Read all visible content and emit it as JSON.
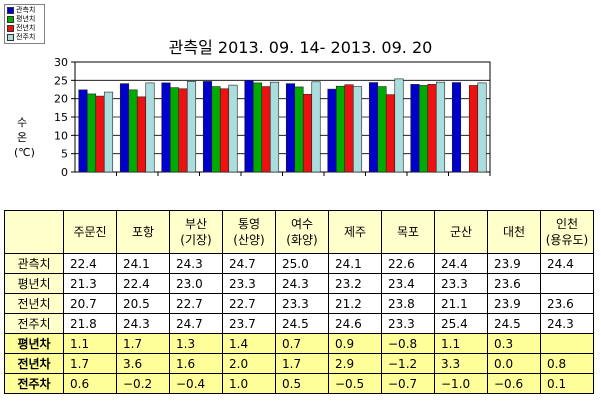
{
  "legend": [
    {
      "label": "관측치",
      "color": "#0000cc"
    },
    {
      "label": "평년치",
      "color": "#00aa00"
    },
    {
      "label": "전년치",
      "color": "#ee1111"
    },
    {
      "label": "전주치",
      "color": "#aadddd"
    }
  ],
  "chart_data": {
    "type": "bar",
    "title": "관측일 2013. 09. 14-  2013. 09. 20",
    "ylabel": "수온(℃)",
    "ylabel_lines": [
      "수",
      "온",
      "(℃)"
    ],
    "ylim": [
      0,
      30
    ],
    "yticks": [
      "0",
      "5",
      "10",
      "15",
      "20",
      "25",
      "30"
    ],
    "categories": [
      "주문진",
      "포항",
      "부산 (기장)",
      "통영 (산양)",
      "여수 (화양)",
      "제주",
      "목포",
      "군산",
      "대천",
      "인천 (용유도)"
    ],
    "series": [
      {
        "name": "관측치",
        "color": "#0000cc",
        "values": [
          22.4,
          24.1,
          24.3,
          24.7,
          25.0,
          24.1,
          22.6,
          24.4,
          23.9,
          24.4
        ]
      },
      {
        "name": "평년치",
        "color": "#00aa00",
        "values": [
          21.3,
          22.4,
          23.0,
          23.3,
          24.3,
          23.2,
          23.4,
          23.3,
          23.6,
          null
        ]
      },
      {
        "name": "전년치",
        "color": "#ee1111",
        "values": [
          20.7,
          20.5,
          22.7,
          22.7,
          23.3,
          21.2,
          23.8,
          21.1,
          23.9,
          23.6
        ]
      },
      {
        "name": "전주치",
        "color": "#aadddd",
        "values": [
          21.8,
          24.3,
          24.7,
          23.7,
          24.5,
          24.6,
          23.3,
          25.4,
          24.5,
          24.3
        ]
      }
    ],
    "grid": true
  },
  "table": {
    "headers": [
      [
        "주문진"
      ],
      [
        "포항"
      ],
      [
        "부산",
        "(기장)"
      ],
      [
        "통영",
        "(산양)"
      ],
      [
        "여수",
        "(화양)"
      ],
      [
        "제주"
      ],
      [
        "목포"
      ],
      [
        "군산"
      ],
      [
        "대천"
      ],
      [
        "인천",
        "(용유도)"
      ]
    ],
    "rows": [
      {
        "label": "관측치",
        "values": [
          "22.4",
          "24.1",
          "24.3",
          "24.7",
          "25.0",
          "24.1",
          "22.6",
          "24.4",
          "23.9",
          "24.4"
        ]
      },
      {
        "label": "평년치",
        "values": [
          "21.3",
          "22.4",
          "23.0",
          "23.3",
          "24.3",
          "23.2",
          "23.4",
          "23.3",
          "23.6",
          ""
        ]
      },
      {
        "label": "전년치",
        "values": [
          "20.7",
          "20.5",
          "22.7",
          "22.7",
          "23.3",
          "21.2",
          "23.8",
          "21.1",
          "23.9",
          "23.6"
        ]
      },
      {
        "label": "전주치",
        "values": [
          "21.8",
          "24.3",
          "24.7",
          "23.7",
          "24.5",
          "24.6",
          "23.3",
          "25.4",
          "24.5",
          "24.3"
        ]
      },
      {
        "label": "평년차",
        "diff": true,
        "values": [
          "1.1",
          "1.7",
          "1.3",
          "1.4",
          "0.7",
          "0.9",
          "−0.8",
          "1.1",
          "0.3",
          ""
        ]
      },
      {
        "label": "전년차",
        "diff": true,
        "values": [
          "1.7",
          "3.6",
          "1.6",
          "2.0",
          "1.7",
          "2.9",
          "−1.2",
          "3.3",
          "0.0",
          "0.8"
        ]
      },
      {
        "label": "전주차",
        "diff": true,
        "values": [
          "0.6",
          "−0.2",
          "−0.4",
          "1.0",
          "0.5",
          "−0.5",
          "−0.7",
          "−1.0",
          "−0.6",
          "0.1"
        ]
      }
    ]
  }
}
